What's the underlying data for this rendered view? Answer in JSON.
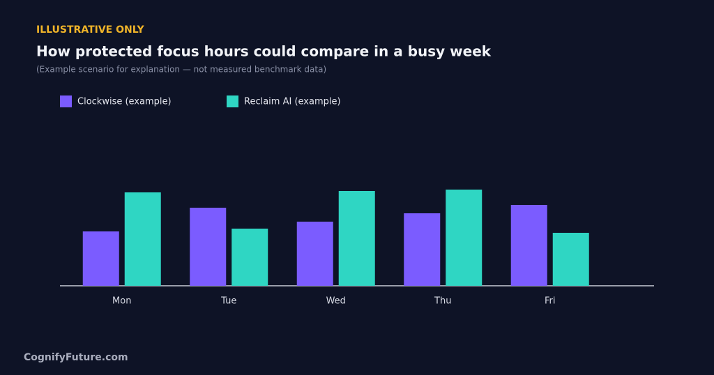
{
  "page": {
    "eyebrow": "ILLUSTRATIVE ONLY",
    "footer": "CognifyFuture.com"
  },
  "chart_data": {
    "type": "bar",
    "title": "How protected focus hours could compare in a busy week",
    "subtitle": "(Example scenario for explanation — not measured benchmark data)",
    "categories": [
      "Mon",
      "Tue",
      "Wed",
      "Thu",
      "Fri"
    ],
    "series": [
      {
        "name": "Clockwise (example)",
        "color": "#7b5cff",
        "values": [
          3.9,
          5.6,
          4.6,
          5.2,
          5.8
        ]
      },
      {
        "name": "Reclaim AI (example)",
        "color": "#2fd6c3",
        "values": [
          6.7,
          4.1,
          6.8,
          6.9,
          3.8
        ]
      }
    ],
    "ylim": [
      0,
      8
    ]
  }
}
